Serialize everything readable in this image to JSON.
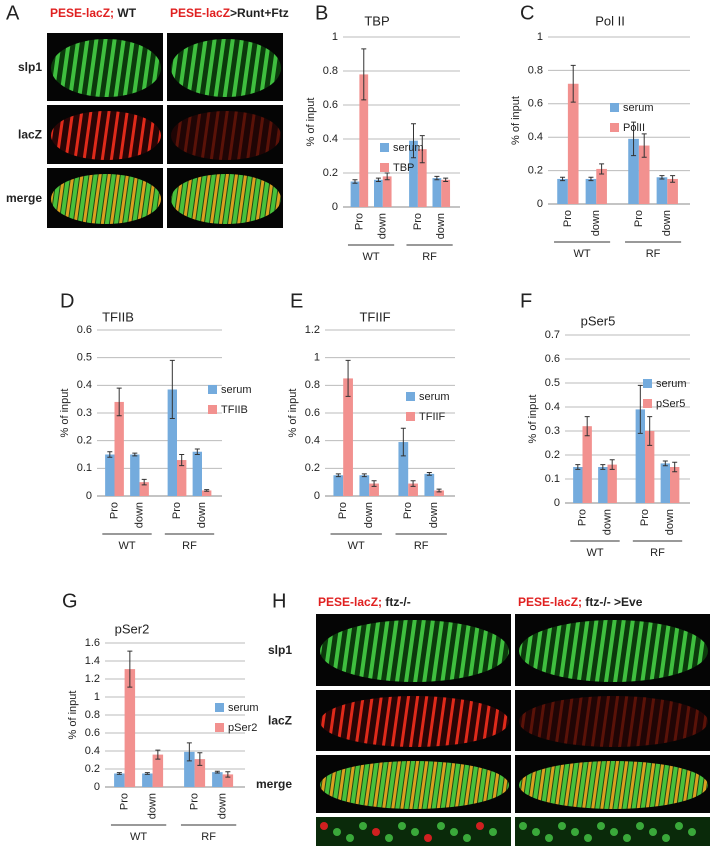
{
  "chart_data": [
    {
      "type": "bar",
      "panel": "B",
      "title": "TBP",
      "ylabel": "% of input",
      "categories": [
        "Pro",
        "down",
        "Pro",
        "down"
      ],
      "groups": [
        "WT",
        "RF"
      ],
      "ylim": [
        0,
        1
      ],
      "yticks": [
        0,
        0.2,
        0.4,
        0.6,
        0.8,
        1
      ],
      "grid": true,
      "series": [
        {
          "name": "serum",
          "color": "#74abdd",
          "values": [
            0.15,
            0.16,
            0.39,
            0.17
          ],
          "errors": [
            0.01,
            0.01,
            0.1,
            0.01
          ]
        },
        {
          "name": "TBP",
          "color": "#f2918f",
          "values": [
            0.78,
            0.18,
            0.34,
            0.16
          ],
          "errors": [
            0.15,
            0.02,
            0.08,
            0.01
          ]
        }
      ]
    },
    {
      "type": "bar",
      "panel": "C",
      "title": "Pol II",
      "ylabel": "% of input",
      "categories": [
        "Pro",
        "down",
        "Pro",
        "down"
      ],
      "groups": [
        "WT",
        "RF"
      ],
      "ylim": [
        0,
        1
      ],
      "yticks": [
        0,
        0.2,
        0.4,
        0.6,
        0.8,
        1
      ],
      "grid": true,
      "series": [
        {
          "name": "serum",
          "color": "#74abdd",
          "values": [
            0.15,
            0.15,
            0.39,
            0.16
          ],
          "errors": [
            0.01,
            0.01,
            0.1,
            0.01
          ]
        },
        {
          "name": "PolII",
          "color": "#f2918f",
          "values": [
            0.72,
            0.21,
            0.35,
            0.15
          ],
          "errors": [
            0.11,
            0.03,
            0.07,
            0.02
          ]
        }
      ]
    },
    {
      "type": "bar",
      "panel": "D",
      "title": "TFIIB",
      "ylabel": "% of input",
      "categories": [
        "Pro",
        "down",
        "Pro",
        "down"
      ],
      "groups": [
        "WT",
        "RF"
      ],
      "ylim": [
        0,
        0.6
      ],
      "yticks": [
        0,
        0.1,
        0.2,
        0.3,
        0.4,
        0.5,
        0.6
      ],
      "grid": true,
      "series": [
        {
          "name": "serum",
          "color": "#74abdd",
          "values": [
            0.15,
            0.15,
            0.385,
            0.16
          ],
          "errors": [
            0.01,
            0.005,
            0.105,
            0.01
          ]
        },
        {
          "name": "TFIIB",
          "color": "#f2918f",
          "values": [
            0.34,
            0.05,
            0.13,
            0.02
          ],
          "errors": [
            0.05,
            0.01,
            0.02,
            0.003
          ]
        }
      ]
    },
    {
      "type": "bar",
      "panel": "E",
      "title": "TFIIF",
      "ylabel": "% of input",
      "categories": [
        "Pro",
        "down",
        "Pro",
        "down"
      ],
      "groups": [
        "WT",
        "RF"
      ],
      "ylim": [
        0,
        1.2
      ],
      "yticks": [
        0,
        0.2,
        0.4,
        0.6,
        0.8,
        1,
        1.2
      ],
      "grid": true,
      "series": [
        {
          "name": "serum",
          "color": "#74abdd",
          "values": [
            0.15,
            0.15,
            0.39,
            0.16
          ],
          "errors": [
            0.01,
            0.01,
            0.1,
            0.01
          ]
        },
        {
          "name": "TFIIF",
          "color": "#f2918f",
          "values": [
            0.85,
            0.09,
            0.09,
            0.04
          ],
          "errors": [
            0.13,
            0.02,
            0.02,
            0.01
          ]
        }
      ]
    },
    {
      "type": "bar",
      "panel": "F",
      "title": "pSer5",
      "ylabel": "% of input",
      "categories": [
        "Pro",
        "down",
        "Pro",
        "down"
      ],
      "groups": [
        "WT",
        "RF"
      ],
      "ylim": [
        0,
        0.7
      ],
      "yticks": [
        0,
        0.1,
        0.2,
        0.3,
        0.4,
        0.5,
        0.6,
        0.7
      ],
      "grid": true,
      "series": [
        {
          "name": "serum",
          "color": "#74abdd",
          "values": [
            0.15,
            0.15,
            0.39,
            0.165
          ],
          "errors": [
            0.01,
            0.01,
            0.1,
            0.01
          ]
        },
        {
          "name": "pSer5",
          "color": "#f2918f",
          "values": [
            0.32,
            0.16,
            0.3,
            0.15
          ],
          "errors": [
            0.04,
            0.02,
            0.06,
            0.02
          ]
        }
      ]
    },
    {
      "type": "bar",
      "panel": "G",
      "title": "pSer2",
      "ylabel": "% of input",
      "categories": [
        "Pro",
        "down",
        "Pro",
        "down"
      ],
      "groups": [
        "WT",
        "RF"
      ],
      "ylim": [
        0,
        1.6
      ],
      "yticks": [
        0,
        0.2,
        0.4,
        0.6,
        0.8,
        1,
        1.2,
        1.4,
        1.6
      ],
      "grid": true,
      "series": [
        {
          "name": "serum",
          "color": "#74abdd",
          "values": [
            0.15,
            0.15,
            0.39,
            0.165
          ],
          "errors": [
            0.01,
            0.01,
            0.1,
            0.01
          ]
        },
        {
          "name": "pSer2",
          "color": "#f2918f",
          "values": [
            1.31,
            0.36,
            0.31,
            0.14
          ],
          "errors": [
            0.2,
            0.05,
            0.07,
            0.03
          ]
        }
      ]
    }
  ],
  "image_panels": [
    {
      "panel": "A",
      "headers": [
        [
          "PESE-lacZ;",
          " WT"
        ],
        [
          "PESE-lacZ",
          ">Runt+Ftz"
        ]
      ],
      "rows": [
        "slp1",
        "lacZ",
        "merge"
      ]
    },
    {
      "panel": "H",
      "headers": [
        [
          "PESE-lacZ;",
          " ftz-/-"
        ],
        [
          "PESE-lacZ;",
          " ftz-/- >Eve"
        ]
      ],
      "rows": [
        "slp1",
        "lacZ",
        "merge"
      ]
    }
  ]
}
